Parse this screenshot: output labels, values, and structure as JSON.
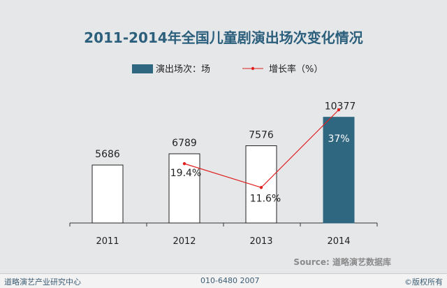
{
  "chart_data": {
    "type": "bar",
    "title": "2011-2014年全国儿童剧演出场次变化情况",
    "categories": [
      "2011",
      "2012",
      "2013",
      "2014"
    ],
    "series": [
      {
        "name": "演出场次：场",
        "kind": "bar",
        "values": [
          5686,
          6789,
          7576,
          10377
        ],
        "labels": [
          "5686",
          "6789",
          "7576",
          "10377"
        ]
      },
      {
        "name": "增长率（%）",
        "kind": "line",
        "values": [
          null,
          19.4,
          11.6,
          37
        ],
        "labels": [
          "",
          "19.4%",
          "11.6%",
          "37%"
        ]
      }
    ],
    "highlight_index": 3,
    "ylim": [
      0,
      12000
    ],
    "growth_ylim": [
      0,
      40
    ],
    "grid": false,
    "legend_position": "top",
    "colors": {
      "title": "#2b5f7c",
      "highlight_bar": "#2f6680",
      "line": "#e02020",
      "bar_outline": "#222222",
      "bar_fill": "#ffffff"
    }
  },
  "source": "Source: 道略演艺数据库",
  "footer": {
    "left": "道略演艺产业研究中心",
    "center": "010-6480 2007",
    "right": "©版权所有"
  }
}
